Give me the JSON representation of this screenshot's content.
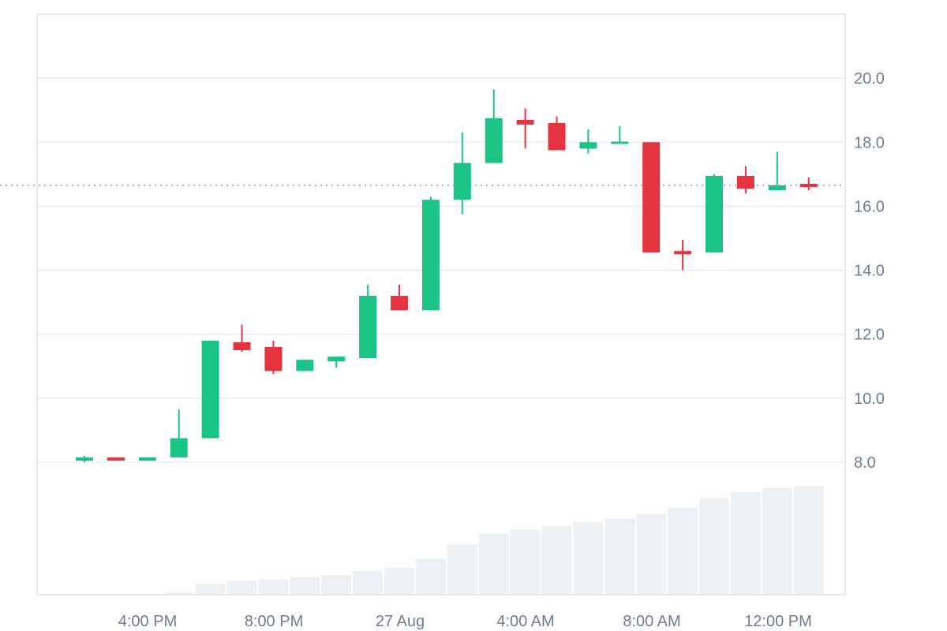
{
  "chart_data": {
    "type": "candlestick",
    "x_tick_labels": [
      "4:00 PM",
      "8:00 PM",
      "27 Aug",
      "4:00 AM",
      "8:00 AM",
      "12:00 PM"
    ],
    "y_tick_labels": [
      "8.0",
      "10.0",
      "12.0",
      "14.0",
      "16.0",
      "18.0",
      "20.0"
    ],
    "y_ticks": [
      8,
      10,
      12,
      14,
      16,
      18,
      20
    ],
    "ylim": [
      8,
      22
    ],
    "grid": true,
    "price_line": 16.65,
    "candles": [
      {
        "open": 8.05,
        "high": 8.2,
        "low": 8.0,
        "close": 8.15
      },
      {
        "open": 8.15,
        "high": 8.15,
        "low": 8.05,
        "close": 8.05
      },
      {
        "open": 8.05,
        "high": 8.15,
        "low": 8.05,
        "close": 8.15
      },
      {
        "open": 8.15,
        "high": 9.65,
        "low": 8.15,
        "close": 8.75
      },
      {
        "open": 8.75,
        "high": 11.8,
        "low": 8.75,
        "close": 11.8
      },
      {
        "open": 11.75,
        "high": 12.3,
        "low": 11.45,
        "close": 11.5
      },
      {
        "open": 11.6,
        "high": 11.8,
        "low": 10.75,
        "close": 10.85
      },
      {
        "open": 10.85,
        "high": 11.2,
        "low": 10.85,
        "close": 11.2
      },
      {
        "open": 11.15,
        "high": 11.3,
        "low": 10.95,
        "close": 11.3
      },
      {
        "open": 11.25,
        "high": 13.55,
        "low": 11.25,
        "close": 13.2
      },
      {
        "open": 13.2,
        "high": 13.55,
        "low": 12.75,
        "close": 12.75
      },
      {
        "open": 12.75,
        "high": 16.3,
        "low": 12.75,
        "close": 16.2
      },
      {
        "open": 16.2,
        "high": 18.3,
        "low": 15.75,
        "close": 17.35
      },
      {
        "open": 17.35,
        "high": 19.65,
        "low": 17.35,
        "close": 18.75
      },
      {
        "open": 18.7,
        "high": 19.05,
        "low": 17.8,
        "close": 18.55
      },
      {
        "open": 18.6,
        "high": 18.8,
        "low": 17.75,
        "close": 17.75
      },
      {
        "open": 17.8,
        "high": 18.4,
        "low": 17.65,
        "close": 18.0
      },
      {
        "open": 17.98,
        "high": 18.5,
        "low": 17.98,
        "close": 18.02
      },
      {
        "open": 18.0,
        "high": 18.0,
        "low": 14.55,
        "close": 14.55
      },
      {
        "open": 14.6,
        "high": 14.95,
        "low": 14.0,
        "close": 14.5
      },
      {
        "open": 14.55,
        "high": 17.0,
        "low": 14.55,
        "close": 16.95
      },
      {
        "open": 16.95,
        "high": 17.25,
        "low": 16.4,
        "close": 16.55
      },
      {
        "open": 16.5,
        "high": 17.7,
        "low": 16.5,
        "close": 16.65
      },
      {
        "open": 16.7,
        "high": 16.9,
        "low": 16.5,
        "close": 16.6
      }
    ],
    "volume_levels": [
      0,
      0,
      0,
      0.02,
      0.1,
      0.13,
      0.14,
      0.16,
      0.18,
      0.22,
      0.25,
      0.33,
      0.46,
      0.56,
      0.6,
      0.63,
      0.67,
      0.7,
      0.74,
      0.8,
      0.89,
      0.94,
      0.98,
      1.0
    ]
  },
  "colors": {
    "up": "#1bc384",
    "down": "#e5343f",
    "volume": "#eef1f4",
    "grid": "#e8ebef",
    "border": "#dfe3e8",
    "text": "#717d8d",
    "price_line": "#999999"
  }
}
